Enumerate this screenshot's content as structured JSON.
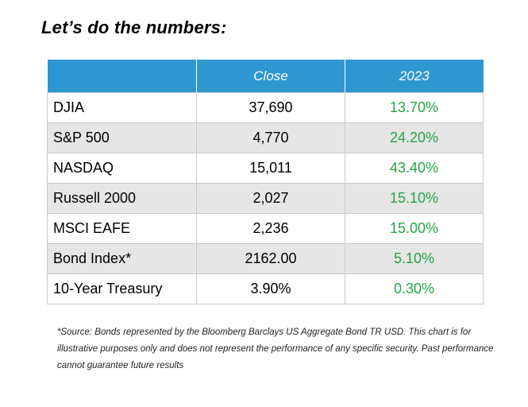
{
  "title": "Let’s do the numbers:",
  "table": {
    "headers": [
      "",
      "Close",
      "2023"
    ],
    "rows": [
      {
        "name": "DJIA",
        "close": "37,690",
        "return": "13.70%"
      },
      {
        "name": "S&P 500",
        "close": "4,770",
        "return": "24.20%"
      },
      {
        "name": "NASDAQ",
        "close": "15,011",
        "return": "43.40%"
      },
      {
        "name": "Russell 2000",
        "close": "2,027",
        "return": "15.10%"
      },
      {
        "name": "MSCI EAFE",
        "close": "2,236",
        "return": "15.00%"
      },
      {
        "name": "Bond Index*",
        "close": "2162.00",
        "return": "5.10%"
      },
      {
        "name": "10-Year Treasury",
        "close": "3.90%",
        "return": "0.30%"
      }
    ]
  },
  "footnote": "*Source: Bonds represented by the Bloomberg Barclays US Aggregate Bond TR USD.  This chart is for illustrative purposes only and does not represent the performance  of any specific security. Past performance cannot guarantee future results",
  "colors": {
    "header_bg": "#2e97d2",
    "shaded_row": "#e6e6e6",
    "return_text": "#24a446"
  }
}
